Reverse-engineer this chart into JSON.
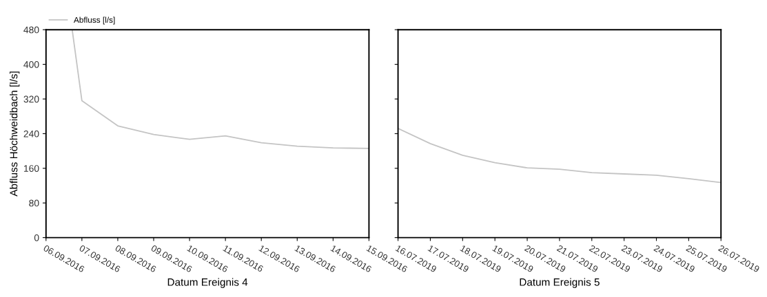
{
  "chart_data": [
    {
      "type": "line",
      "xlabel": "Datum Ereignis 4",
      "ylabel": "Abfluss Höchweidbach [l/s]",
      "legend": "top left",
      "grid": false,
      "marker": "none",
      "line_style": "solid",
      "xlim": [
        "2016-09-06",
        "2016-09-15"
      ],
      "ylim": [
        0,
        480
      ],
      "yticks": [
        0,
        80,
        160,
        240,
        320,
        400,
        480
      ],
      "xticks": [
        {
          "value": "2016-09-06",
          "label": "06.09.2016"
        },
        {
          "value": "2016-09-07",
          "label": "07.09.2016"
        },
        {
          "value": "2016-09-08",
          "label": "08.09.2016"
        },
        {
          "value": "2016-09-09",
          "label": "09.09.2016"
        },
        {
          "value": "2016-09-10",
          "label": "10.09.2016"
        },
        {
          "value": "2016-09-11",
          "label": "11.09.2016"
        },
        {
          "value": "2016-09-12",
          "label": "12.09.2016"
        },
        {
          "value": "2016-09-13",
          "label": "13.09.2016"
        },
        {
          "value": "2016-09-14",
          "label": "14.09.2016"
        },
        {
          "value": "2016-09-15",
          "label": "15.09.2016"
        }
      ],
      "series": [
        {
          "name": "Abfluss [l/s]",
          "color": "#c4c4c4",
          "x": [
            "2016-09-06T17:30",
            "2016-09-07",
            "2016-09-08",
            "2016-09-09",
            "2016-09-10",
            "2016-09-11",
            "2016-09-12",
            "2016-09-13",
            "2016-09-14",
            "2016-09-15"
          ],
          "values": [
            480,
            316,
            258,
            238,
            227,
            235,
            219,
            211,
            207,
            206
          ]
        }
      ]
    },
    {
      "type": "line",
      "xlabel": "Datum Ereignis 5",
      "tick_labels": "x",
      "grid": false,
      "marker": "none",
      "line_style": "solid",
      "xlim": [
        "2019-07-16",
        "2019-07-26"
      ],
      "ylim": [
        0,
        480
      ],
      "yticks": [
        0,
        80,
        160,
        240,
        320,
        400,
        480
      ],
      "xticks": [
        {
          "value": "2019-07-16",
          "label": "16.07.2019"
        },
        {
          "value": "2019-07-17",
          "label": "17.07.2019"
        },
        {
          "value": "2019-07-18",
          "label": "18.07.2019"
        },
        {
          "value": "2019-07-19",
          "label": "19.07.2019"
        },
        {
          "value": "2019-07-20",
          "label": "20.07.2019"
        },
        {
          "value": "2019-07-21",
          "label": "21.07.2019"
        },
        {
          "value": "2019-07-22",
          "label": "22.07.2019"
        },
        {
          "value": "2019-07-23",
          "label": "23.07.2019"
        },
        {
          "value": "2019-07-24",
          "label": "24.07.2019"
        },
        {
          "value": "2019-07-25",
          "label": "25.07.2019"
        },
        {
          "value": "2019-07-26",
          "label": "26.07.2019"
        }
      ],
      "series": [
        {
          "color": "#c4c4c4",
          "x": [
            "2019-07-16",
            "2019-07-17",
            "2019-07-18",
            "2019-07-19",
            "2019-07-20",
            "2019-07-21",
            "2019-07-22",
            "2019-07-23",
            "2019-07-24",
            "2019-07-25",
            "2019-07-26"
          ],
          "values": [
            252,
            217,
            190,
            173,
            161,
            158,
            150,
            147,
            144,
            136,
            127
          ]
        }
      ]
    }
  ]
}
